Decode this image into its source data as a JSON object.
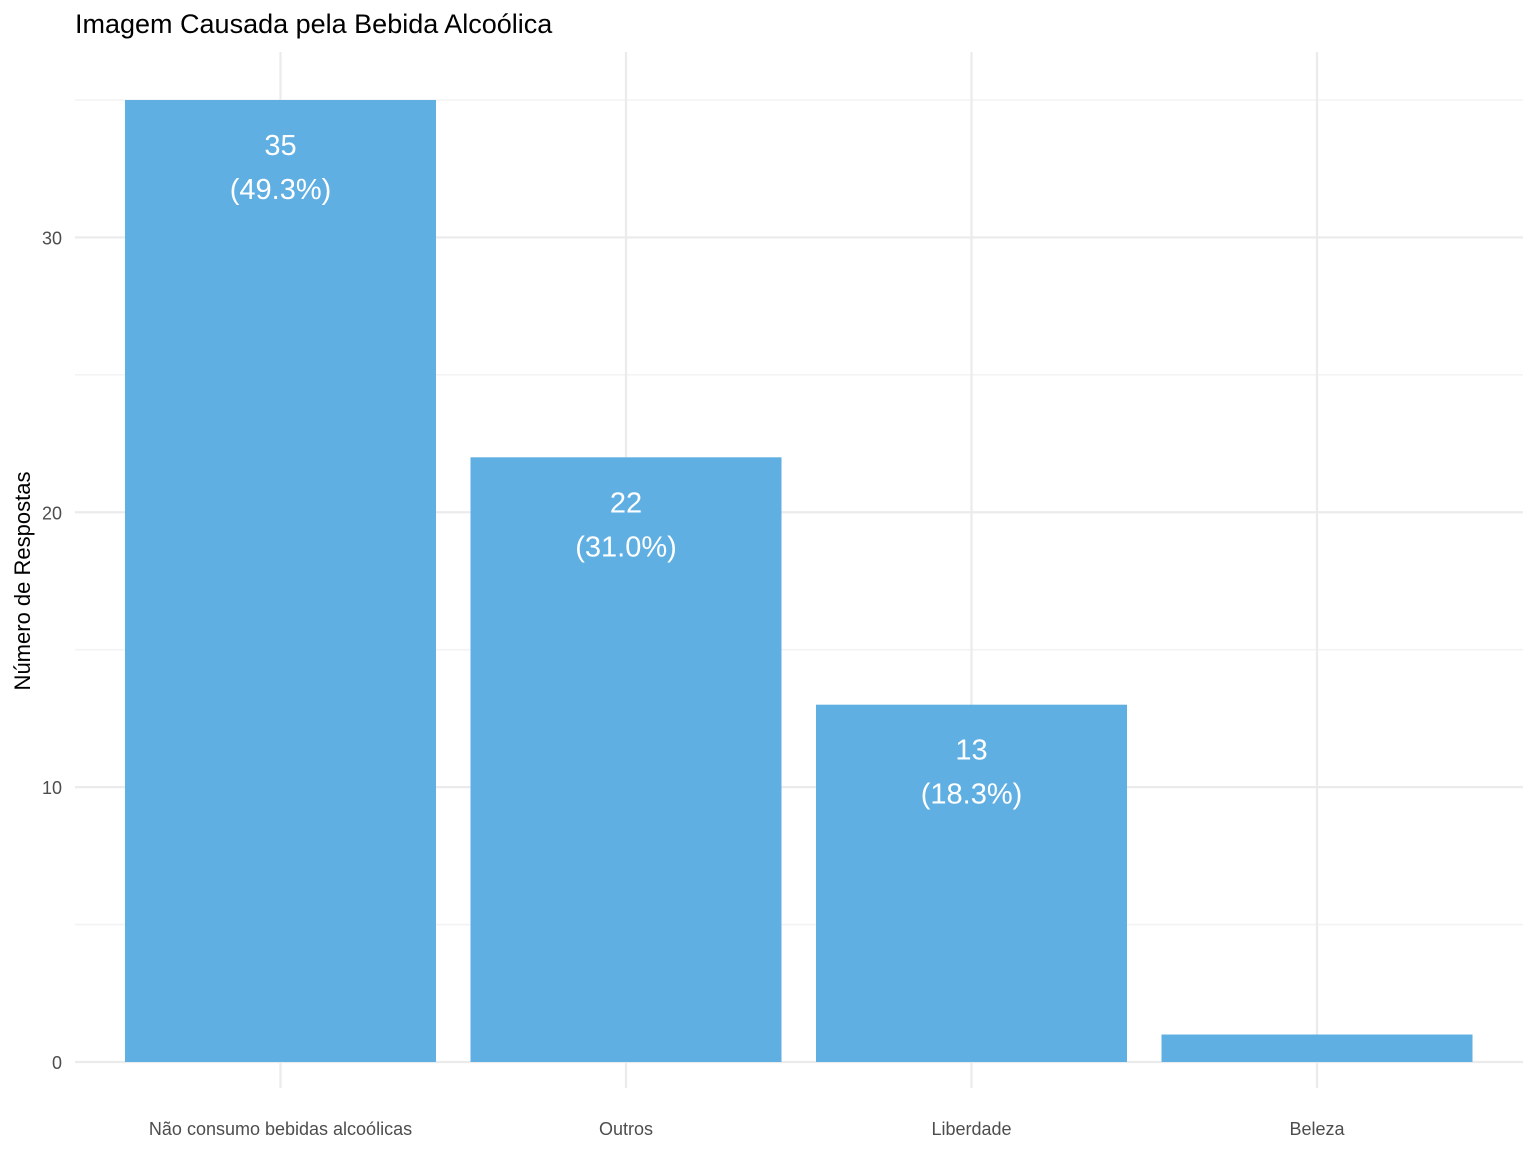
{
  "chart_data": {
    "type": "bar",
    "title": "Imagem Causada pela Bebida Alcoólica",
    "xlabel": "",
    "ylabel": "Número de Respostas",
    "categories": [
      "Não consumo bebidas alcoólicas",
      "Outros",
      "Liberdade",
      "Beleza"
    ],
    "values": [
      35,
      22,
      13,
      1
    ],
    "value_labels": [
      "35",
      "22",
      "13",
      ""
    ],
    "percent_labels": [
      "(49.3%)",
      "(31.0%)",
      "(18.3%)",
      ""
    ],
    "yticks": [
      0,
      10,
      20,
      30
    ],
    "ytick_labels": [
      "0",
      "10",
      "20",
      "30"
    ],
    "ylim": [
      0,
      35
    ],
    "grid": true,
    "legend": "none",
    "bar_color": "#5dade2"
  }
}
